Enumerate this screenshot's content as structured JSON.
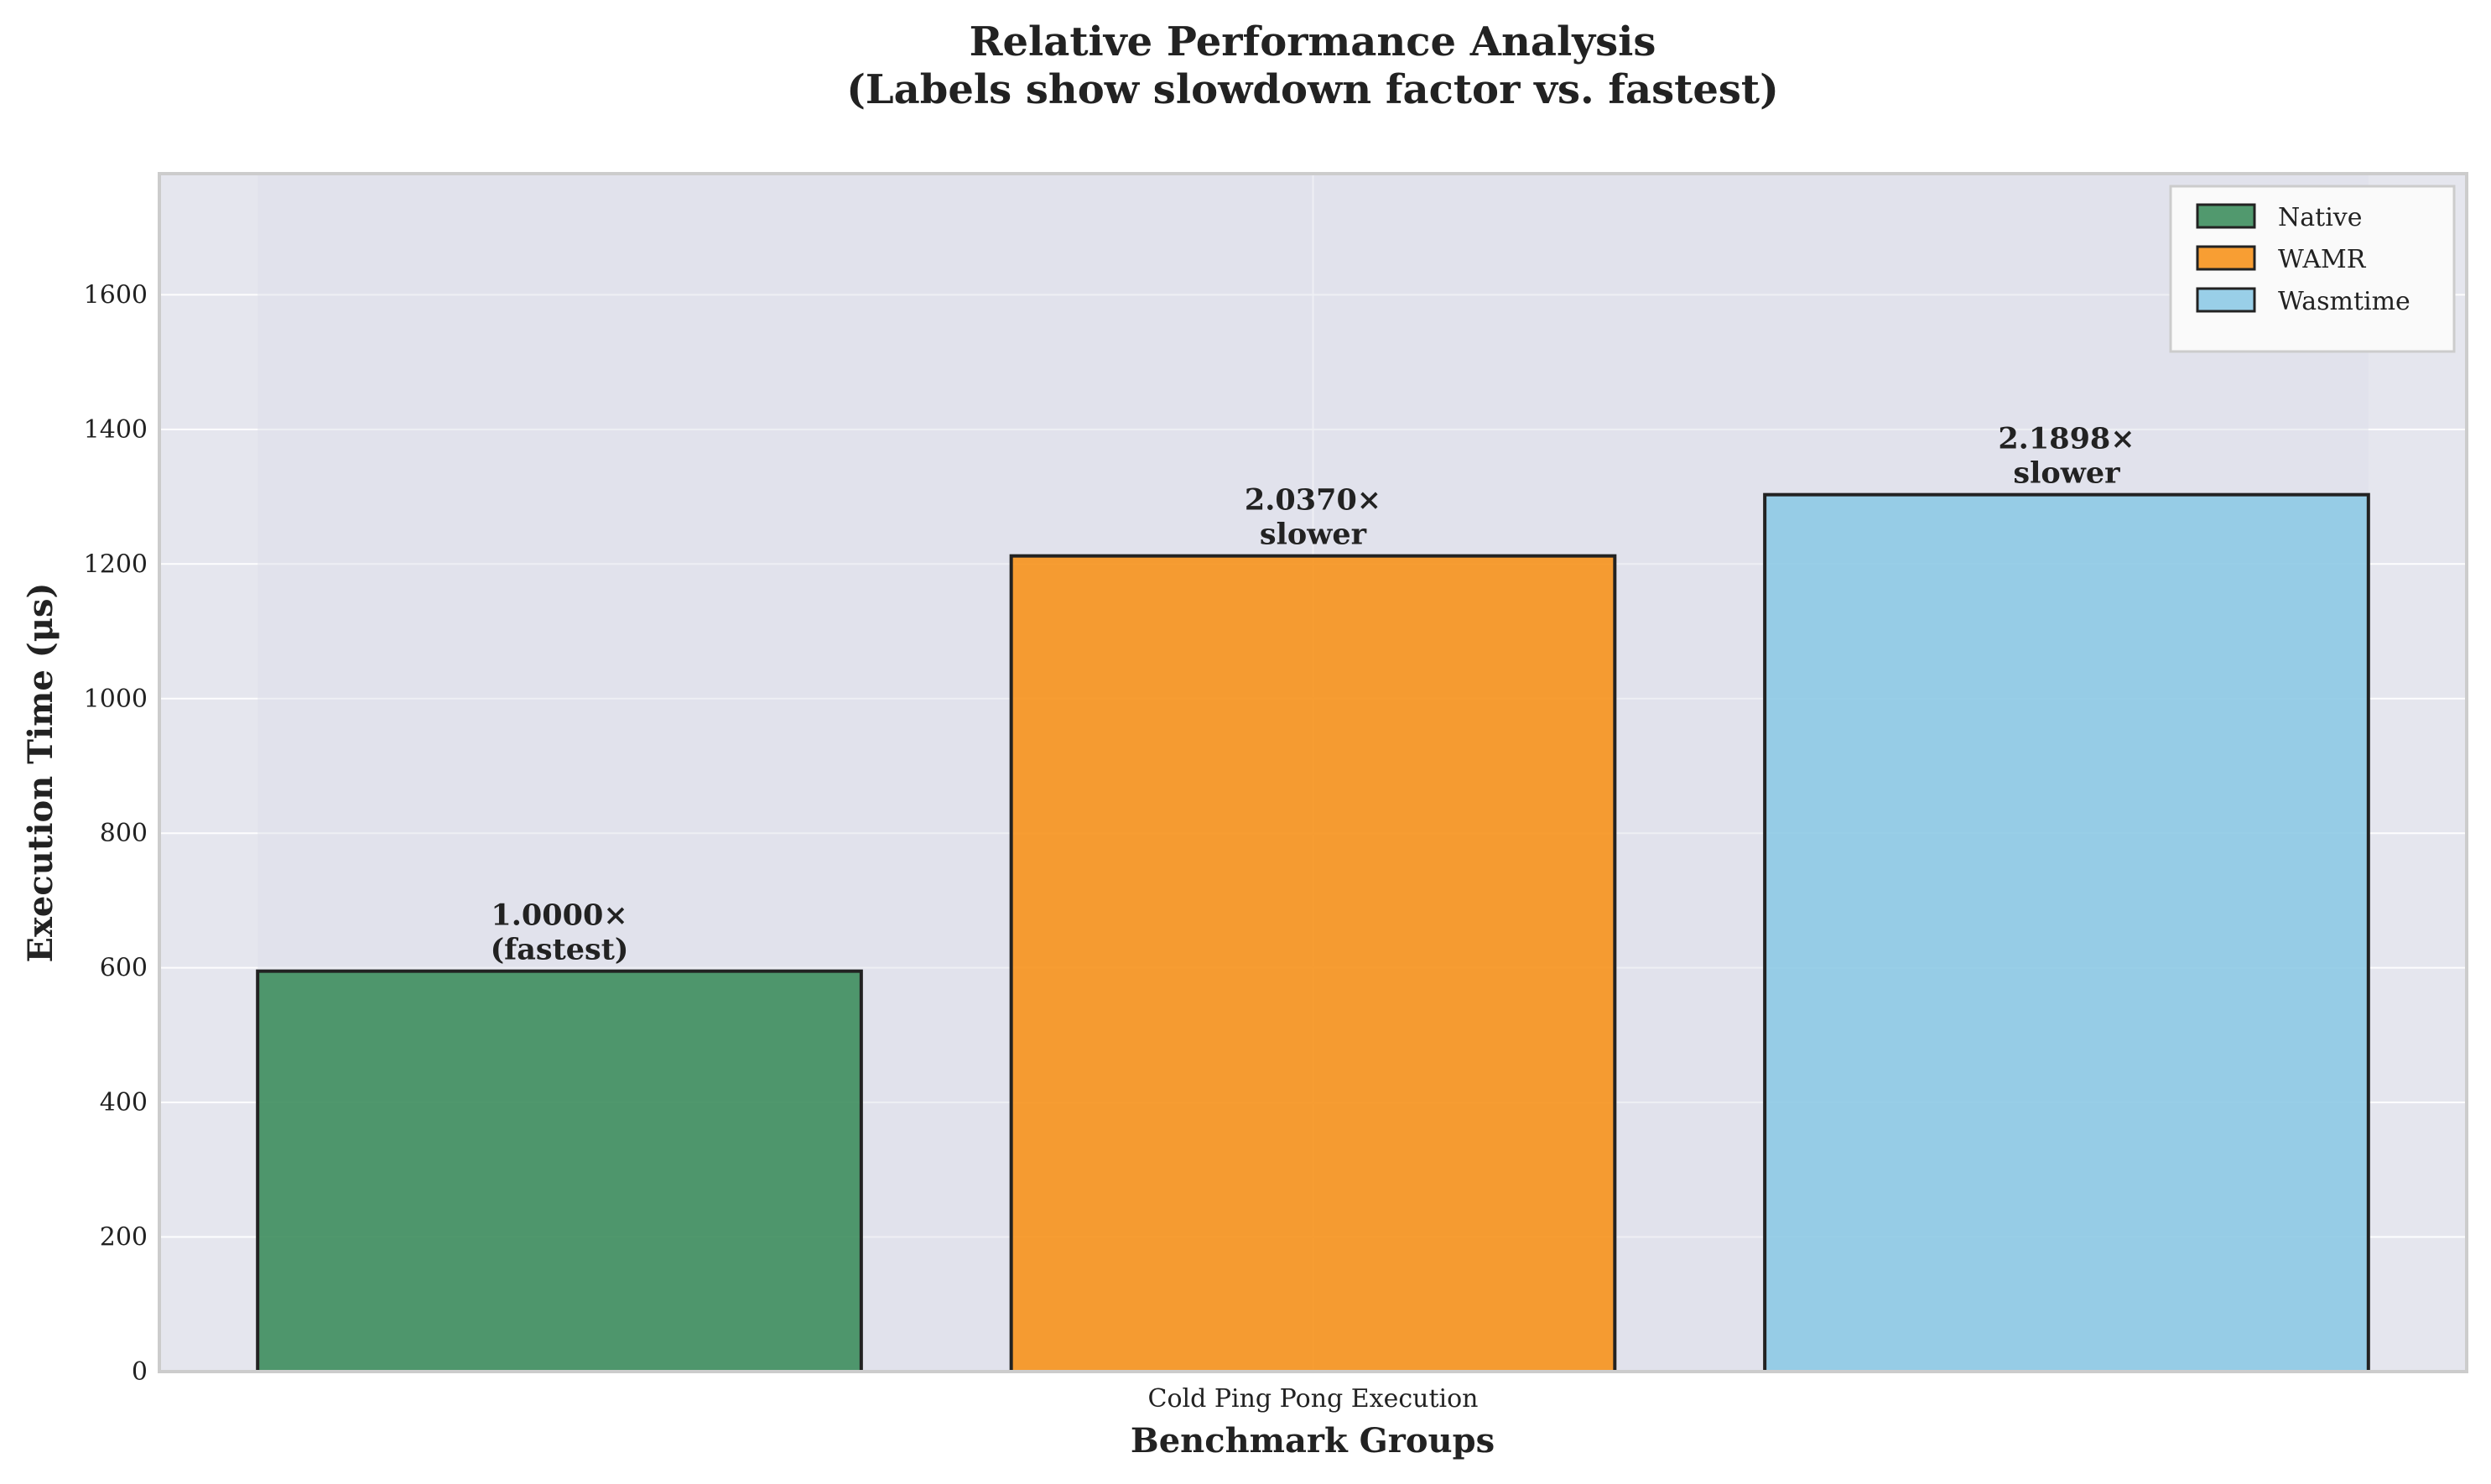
{
  "chart_data": {
    "type": "bar",
    "title": "Relative Performance Analysis",
    "subtitle": "(Labels show slowdown factor vs. fastest)",
    "xlabel": "Benchmark Groups",
    "ylabel": "Execution Time (μs)",
    "categories": [
      "Cold Ping Pong Execution"
    ],
    "ylim": [
      0,
      1780
    ],
    "yticks": [
      0,
      200,
      400,
      600,
      800,
      1000,
      1200,
      1400,
      1600
    ],
    "grid": true,
    "legend_position": "top-right",
    "series": [
      {
        "name": "Native",
        "color": "#3e8e5e",
        "values": [
          595
        ],
        "label_line1": "1.0000×",
        "label_line2": "(fastest)"
      },
      {
        "name": "WAMR",
        "color": "#f7941d",
        "values": [
          1212
        ],
        "label_line1": "2.0370×",
        "label_line2": "slower"
      },
      {
        "name": "Wasmtime",
        "color": "#8ecae6",
        "values": [
          1303
        ],
        "label_line1": "2.1898×",
        "label_line2": "slower"
      }
    ]
  }
}
